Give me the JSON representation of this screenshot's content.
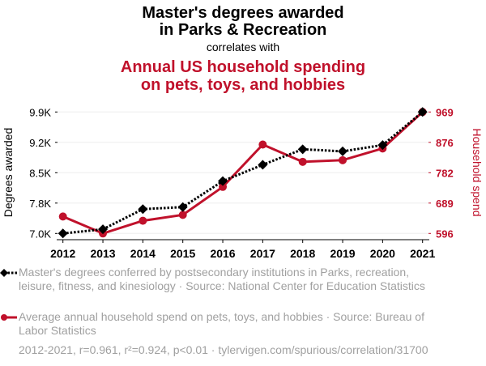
{
  "chart_data": {
    "type": "line",
    "title": "Master's degrees awarded in Parks & Recreation",
    "title_lines": [
      "Master's degrees awarded",
      "in Parks & Recreation"
    ],
    "connector": "correlates with",
    "subtitle_lines": [
      "Annual US household spending",
      "on pets, toys, and hobbies"
    ],
    "x": [
      2012,
      2013,
      2014,
      2015,
      2016,
      2017,
      2018,
      2019,
      2020,
      2021
    ],
    "x_tick_labels": [
      "2012",
      "2013",
      "2014",
      "2015",
      "2016",
      "2017",
      "2018",
      "2019",
      "2020",
      "2021"
    ],
    "series": [
      {
        "name": "Master's degrees awarded",
        "axis": "left",
        "color": "#000000",
        "style": "dotted",
        "marker": "diamond",
        "values": [
          7000,
          7100,
          7580,
          7630,
          8250,
          8640,
          9010,
          8960,
          9110,
          9900
        ]
      },
      {
        "name": "Household spend",
        "axis": "right",
        "color": "#c0112b",
        "style": "solid",
        "marker": "circle",
        "values": [
          648,
          596,
          635,
          653,
          739,
          869,
          816,
          821,
          857,
          969
        ]
      }
    ],
    "ylabel_left": "Degrees awarded",
    "ylabel_right": "Household spend",
    "ylim_left": [
      7000,
      9900
    ],
    "ylim_right": [
      596,
      969
    ],
    "y_ticks_left": [
      "9.9K",
      "9.2K",
      "8.5K",
      "7.8K",
      "7.0K"
    ],
    "y_ticks_right": [
      "969",
      "876",
      "782",
      "689",
      "596"
    ],
    "grid": true,
    "legend": [
      "Master's degrees conferred by postsecondary institutions in Parks, recreation, leisure, fitness, and kinesiology · Source: National Center for Education Statistics",
      "Average annual household spend on pets, toys, and hobbies · Source: Bureau of Labor Statistics"
    ],
    "footer": "2012-2021, r=0.961, r²=0.924, p<0.01 · tylervigen.com/spurious/correlation/31700"
  }
}
